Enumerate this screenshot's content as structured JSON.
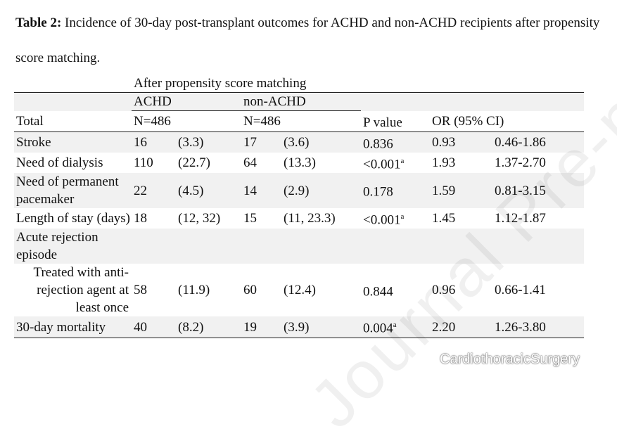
{
  "caption": {
    "label": "Table 2:",
    "text": " Incidence of 30-day post-transplant outcomes for ACHD and non-ACHD recipients after propensity score matching."
  },
  "header": {
    "group": "After propensity score matching",
    "achd": "ACHD",
    "nonachd": "non-ACHD",
    "total": "Total",
    "achd_n": "N=486",
    "nonachd_n": "N=486",
    "pvalue": "P value",
    "or": "OR (95% CI)"
  },
  "rows": [
    {
      "label": "Stroke",
      "a_n": "16",
      "a_p": "(3.3)",
      "b_n": "17",
      "b_p": "(3.6)",
      "p": "0.836",
      "p_sup": "",
      "or": "0.93",
      "ci": "0.46-1.86"
    },
    {
      "label": "Need of dialysis",
      "a_n": "110",
      "a_p": "(22.7)",
      "b_n": "64",
      "b_p": "(13.3)",
      "p": "<0.001",
      "p_sup": "a",
      "or": "1.93",
      "ci": "1.37-2.70"
    },
    {
      "label": "Need of permanent pacemaker",
      "a_n": "22",
      "a_p": "(4.5)",
      "b_n": "14",
      "b_p": "(2.9)",
      "p": "0.178",
      "p_sup": "",
      "or": "1.59",
      "ci": "0.81-3.15"
    },
    {
      "label": "Length of stay (days)",
      "a_n": "18",
      "a_p": "(12, 32)",
      "b_n": "15",
      "b_p": "(11, 23.3)",
      "p": "<0.001",
      "p_sup": "a",
      "or": "1.45",
      "ci": "1.12-1.87"
    },
    {
      "label": "Acute rejection episode",
      "a_n": "",
      "a_p": "",
      "b_n": "",
      "b_p": "",
      "p": "",
      "p_sup": "",
      "or": "",
      "ci": ""
    },
    {
      "label": "Treated with anti-rejection agent at least once",
      "a_n": "58",
      "a_p": "(11.9)",
      "b_n": "60",
      "b_p": "(12.4)",
      "p": "0.844",
      "p_sup": "",
      "or": "0.96",
      "ci": "0.66-1.41"
    },
    {
      "label": "30-day mortality",
      "a_n": "40",
      "a_p": "(8.2)",
      "b_n": "19",
      "b_p": "(3.9)",
      "p": "0.004",
      "p_sup": "a",
      "or": "2.20",
      "ci": "1.26-3.80"
    }
  ],
  "watermark": "Journal Pre-proof",
  "overlay": {
    "icon": "wechat-icon",
    "text": "CardiothoracicSurgery"
  }
}
